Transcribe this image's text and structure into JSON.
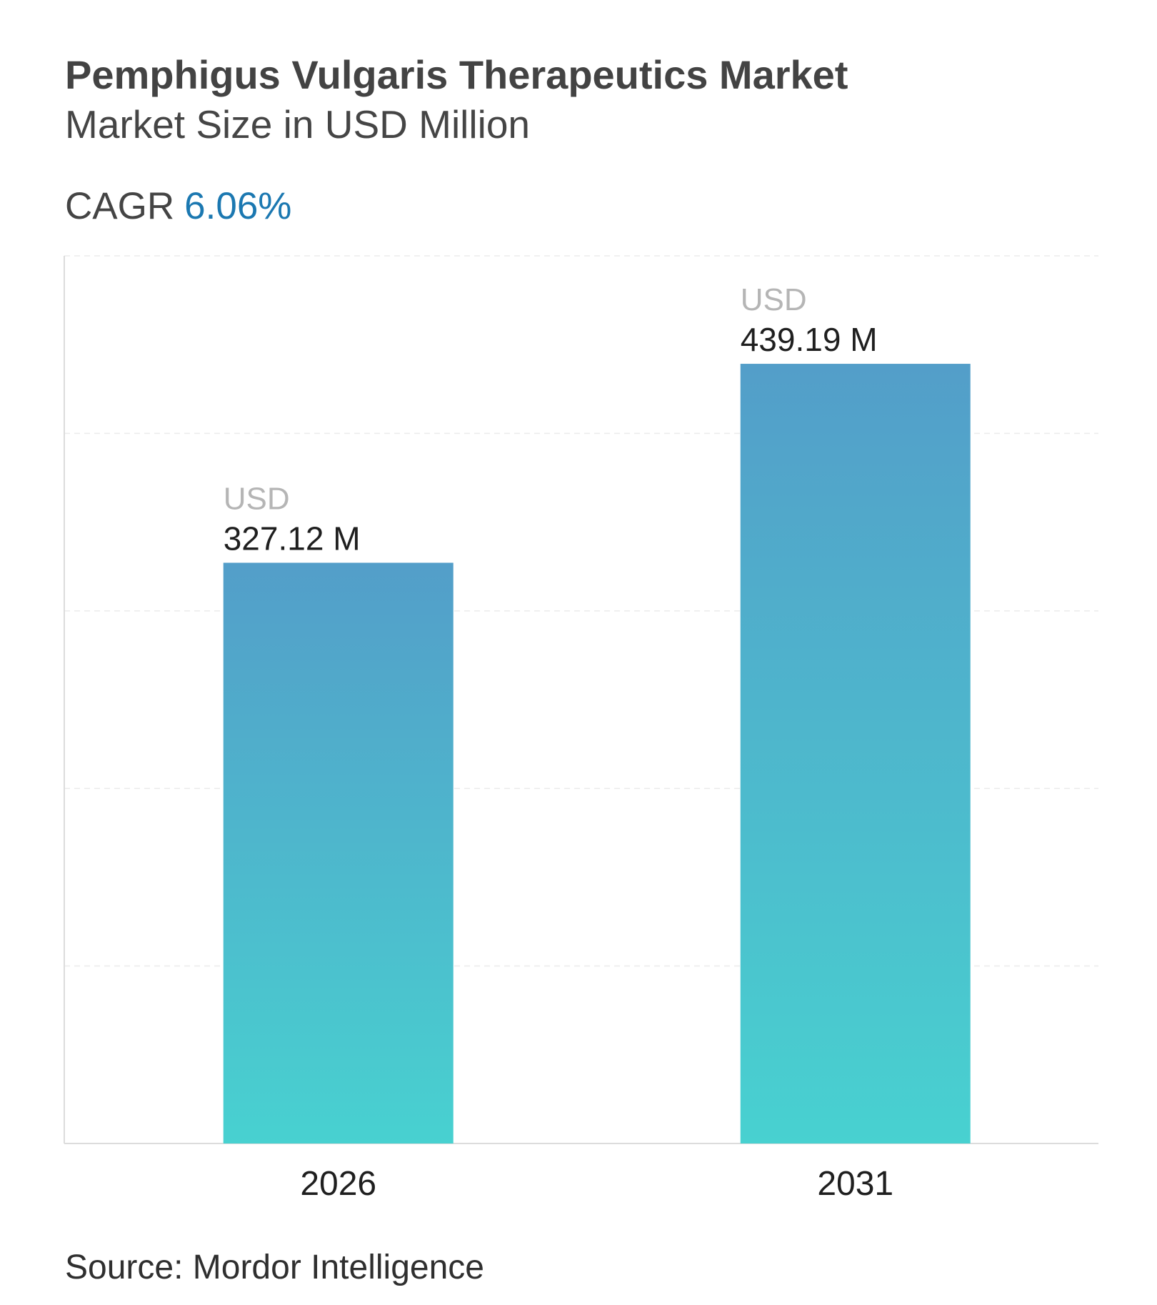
{
  "header": {
    "title": "Pemphigus Vulgaris Therapeutics Market",
    "subtitle": "Market Size in USD Million",
    "cagr_label": "CAGR",
    "cagr_value": "6.06%"
  },
  "footer": {
    "source": "Source: Mordor Intelligence"
  },
  "colors": {
    "bar_top": "#539ec9",
    "bar_bottom": "#48d1d0",
    "cagr_accent": "#1b78b1",
    "value_prefix": "#b5b5b5",
    "value_text": "#1f1f1f",
    "axis": "#dcdcdc",
    "grid": "#ebebeb"
  },
  "chart_data": {
    "type": "bar",
    "categories": [
      "2026",
      "2031"
    ],
    "values": [
      327.12,
      439.19
    ],
    "value_prefix": "USD",
    "value_labels": [
      "327.12 M",
      "439.19 M"
    ],
    "title": "Pemphigus Vulgaris Therapeutics Market",
    "subtitle": "Market Size in USD Million",
    "xlabel": "",
    "ylabel": "",
    "ylim": [
      0,
      500
    ],
    "grid": true,
    "legend": "none"
  }
}
